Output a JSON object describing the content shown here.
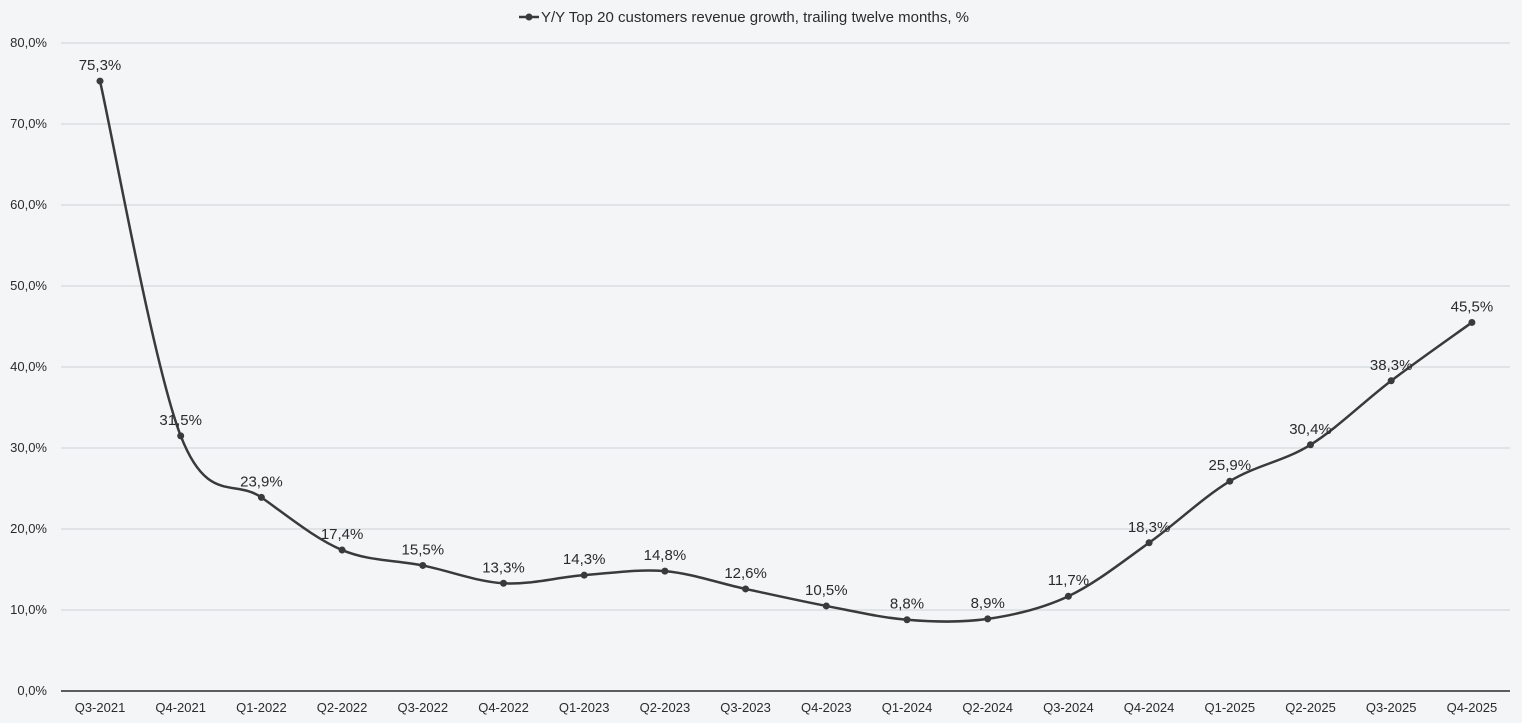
{
  "chart_data": {
    "type": "line",
    "title": "",
    "legend": {
      "position": "top-center",
      "entries": [
        "Y/Y Top 20 customers revenue growth, trailing twelve months, %"
      ]
    },
    "categories": [
      "Q3-2021",
      "Q4-2021",
      "Q1-2022",
      "Q2-2022",
      "Q3-2022",
      "Q4-2022",
      "Q1-2023",
      "Q2-2023",
      "Q3-2023",
      "Q4-2023",
      "Q1-2024",
      "Q2-2024",
      "Q3-2024",
      "Q4-2024",
      "Q1-2025",
      "Q2-2025",
      "Q3-2025",
      "Q4-2025"
    ],
    "series": [
      {
        "name": "Y/Y Top 20 customers revenue growth, trailing twelve months, %",
        "values": [
          75.3,
          31.5,
          23.9,
          17.4,
          15.5,
          13.3,
          14.3,
          14.8,
          12.6,
          10.5,
          8.8,
          8.9,
          11.7,
          18.3,
          25.9,
          30.4,
          38.3,
          45.5
        ],
        "data_labels": [
          "75,3%",
          "31,5%",
          "23,9%",
          "17,4%",
          "15,5%",
          "13,3%",
          "14,3%",
          "14,8%",
          "12,6%",
          "10,5%",
          "8,8%",
          "8,9%",
          "11,7%",
          "18,3%",
          "25,9%",
          "30,4%",
          "38,3%",
          "45,5%"
        ],
        "color": "#3a3a3a",
        "smooth": true,
        "markers": true
      }
    ],
    "y_ticks": [
      0,
      10,
      20,
      30,
      40,
      50,
      60,
      70,
      80
    ],
    "y_tick_labels": [
      "0,0%",
      "10,0%",
      "20,0%",
      "30,0%",
      "40,0%",
      "50,0%",
      "60,0%",
      "70,0%",
      "80,0%"
    ],
    "ylim": [
      0,
      80
    ],
    "xlabel": "",
    "ylabel": "",
    "grid": true,
    "colors": {
      "background": "#f3f5f7",
      "gridline": "#cfd2d6",
      "axis": "#2b2b2b",
      "line": "#3a3a3a"
    }
  }
}
